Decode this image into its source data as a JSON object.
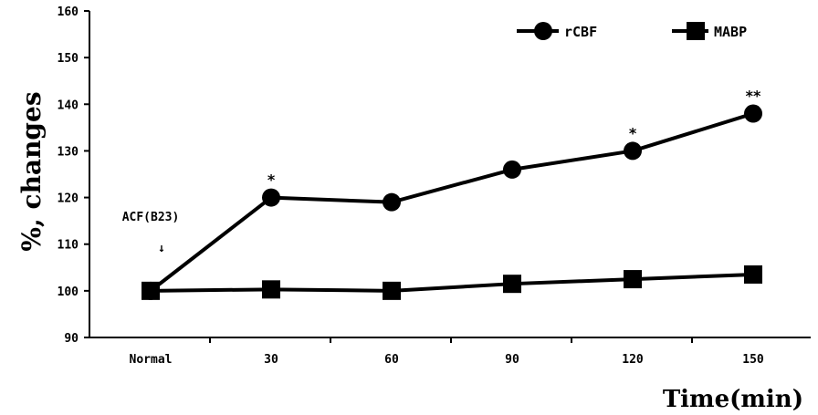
{
  "chart_data": {
    "type": "line",
    "categories": [
      "Normal",
      "30",
      "60",
      "90",
      "120",
      "150"
    ],
    "series": [
      {
        "name": "rCBF",
        "values": [
          100,
          120,
          119,
          126,
          130,
          138
        ],
        "marker": "circle",
        "color": "#000000"
      },
      {
        "name": "MABP",
        "values": [
          100,
          100.3,
          100,
          101.5,
          102.5,
          103.5
        ],
        "marker": "square",
        "color": "#000000"
      }
    ],
    "xlabel": "Time(min)",
    "ylabel": "%, changes",
    "ylim": [
      90,
      160
    ],
    "yticks": [
      90,
      100,
      110,
      120,
      130,
      140,
      150,
      160
    ],
    "grid": false,
    "legend_position": "top-right",
    "annotations": [
      {
        "text": "ACF(B23)",
        "arrow": "↓",
        "category": "Normal"
      }
    ],
    "significance": [
      {
        "series": "rCBF",
        "category": "30",
        "text": "*"
      },
      {
        "series": "rCBF",
        "category": "120",
        "text": "*"
      },
      {
        "series": "rCBF",
        "category": "150",
        "text": "**"
      }
    ]
  }
}
